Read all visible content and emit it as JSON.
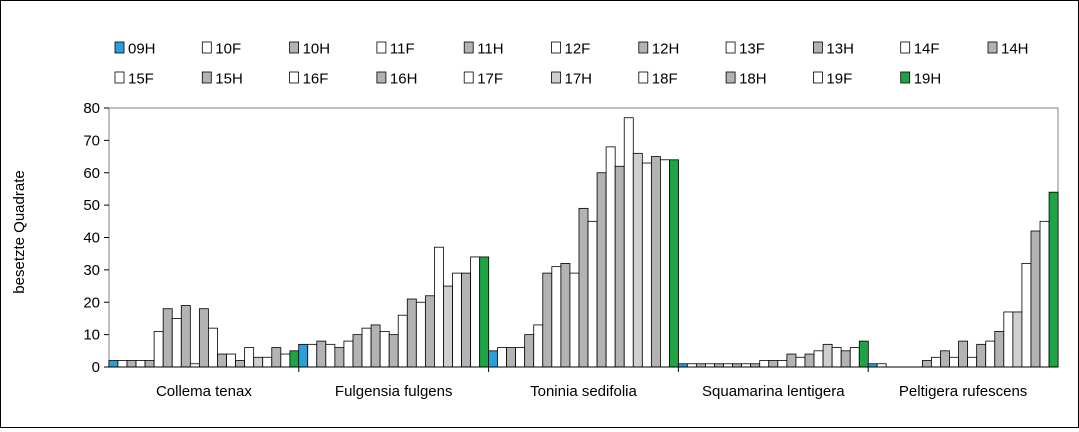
{
  "chart_data": {
    "type": "bar",
    "ylabel": "besetzte Quadrate",
    "xlabel": "",
    "title": "",
    "ylim": [
      0,
      80
    ],
    "yticks": [
      0,
      10,
      20,
      30,
      40,
      50,
      60,
      70,
      80
    ],
    "grid": false,
    "legend_position": "top",
    "categories": [
      "Collema tenax",
      "Fulgensia fulgens",
      "Toninia sedifolia",
      "Squamarina lentigera",
      "Peltigera rufescens"
    ],
    "series": [
      {
        "name": "09H",
        "color": "#2a9fd8",
        "values": [
          2,
          7,
          5,
          1,
          1
        ]
      },
      {
        "name": "10F",
        "color": "#ffffff",
        "values": [
          2,
          7,
          6,
          1,
          1
        ]
      },
      {
        "name": "10H",
        "color": "#b3b3b3",
        "values": [
          2,
          8,
          6,
          1,
          0
        ]
      },
      {
        "name": "11F",
        "color": "#ffffff",
        "values": [
          2,
          7,
          6,
          1,
          0
        ]
      },
      {
        "name": "11H",
        "color": "#b3b3b3",
        "values": [
          2,
          6,
          10,
          1,
          0
        ]
      },
      {
        "name": "12F",
        "color": "#ffffff",
        "values": [
          11,
          8,
          13,
          1,
          0
        ]
      },
      {
        "name": "12H",
        "color": "#b3b3b3",
        "values": [
          18,
          10,
          29,
          1,
          2
        ]
      },
      {
        "name": "13F",
        "color": "#ffffff",
        "values": [
          15,
          12,
          31,
          1,
          3
        ]
      },
      {
        "name": "13H",
        "color": "#b3b3b3",
        "values": [
          19,
          13,
          32,
          1,
          5
        ]
      },
      {
        "name": "14F",
        "color": "#ffffff",
        "values": [
          1,
          11,
          29,
          2,
          3
        ]
      },
      {
        "name": "14H",
        "color": "#b3b3b3",
        "values": [
          18,
          10,
          49,
          2,
          8
        ]
      },
      {
        "name": "15F",
        "color": "#ffffff",
        "values": [
          12,
          16,
          45,
          2,
          3
        ]
      },
      {
        "name": "15H",
        "color": "#b3b3b3",
        "values": [
          4,
          21,
          60,
          4,
          7
        ]
      },
      {
        "name": "16F",
        "color": "#ffffff",
        "values": [
          4,
          20,
          68,
          3,
          8
        ]
      },
      {
        "name": "16H",
        "color": "#b3b3b3",
        "values": [
          2,
          22,
          62,
          4,
          11
        ]
      },
      {
        "name": "17F",
        "color": "#ffffff",
        "values": [
          6,
          37,
          77,
          5,
          17
        ]
      },
      {
        "name": "17H",
        "color": "#cfcfcf",
        "values": [
          3,
          25,
          66,
          7,
          17
        ]
      },
      {
        "name": "18F",
        "color": "#ffffff",
        "values": [
          3,
          29,
          63,
          6,
          32
        ]
      },
      {
        "name": "18H",
        "color": "#b3b3b3",
        "values": [
          6,
          29,
          65,
          5,
          42
        ]
      },
      {
        "name": "19F",
        "color": "#ffffff",
        "values": [
          4,
          34,
          64,
          6,
          45
        ]
      },
      {
        "name": "19H",
        "color": "#1ea345",
        "values": [
          5,
          34,
          64,
          8,
          54
        ]
      }
    ]
  }
}
